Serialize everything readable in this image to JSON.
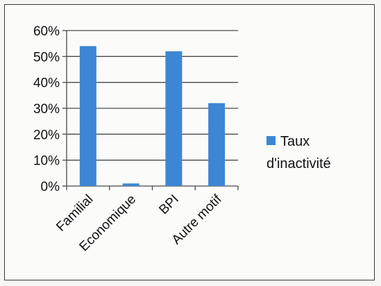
{
  "chart_data": {
    "type": "bar",
    "categories": [
      "Familial",
      "Economique",
      "BPI",
      "Autre motif"
    ],
    "series": [
      {
        "name": "Taux d'inactivité",
        "values": [
          54,
          1,
          52,
          32
        ],
        "color": "#3d86d4"
      }
    ],
    "ylim": [
      0,
      60
    ],
    "yticks": [
      "0%",
      "10%",
      "20%",
      "30%",
      "40%",
      "50%",
      "60%"
    ],
    "grid": true,
    "legend_position": "right",
    "legend_lines": [
      "Taux",
      "d'inactivité"
    ]
  }
}
